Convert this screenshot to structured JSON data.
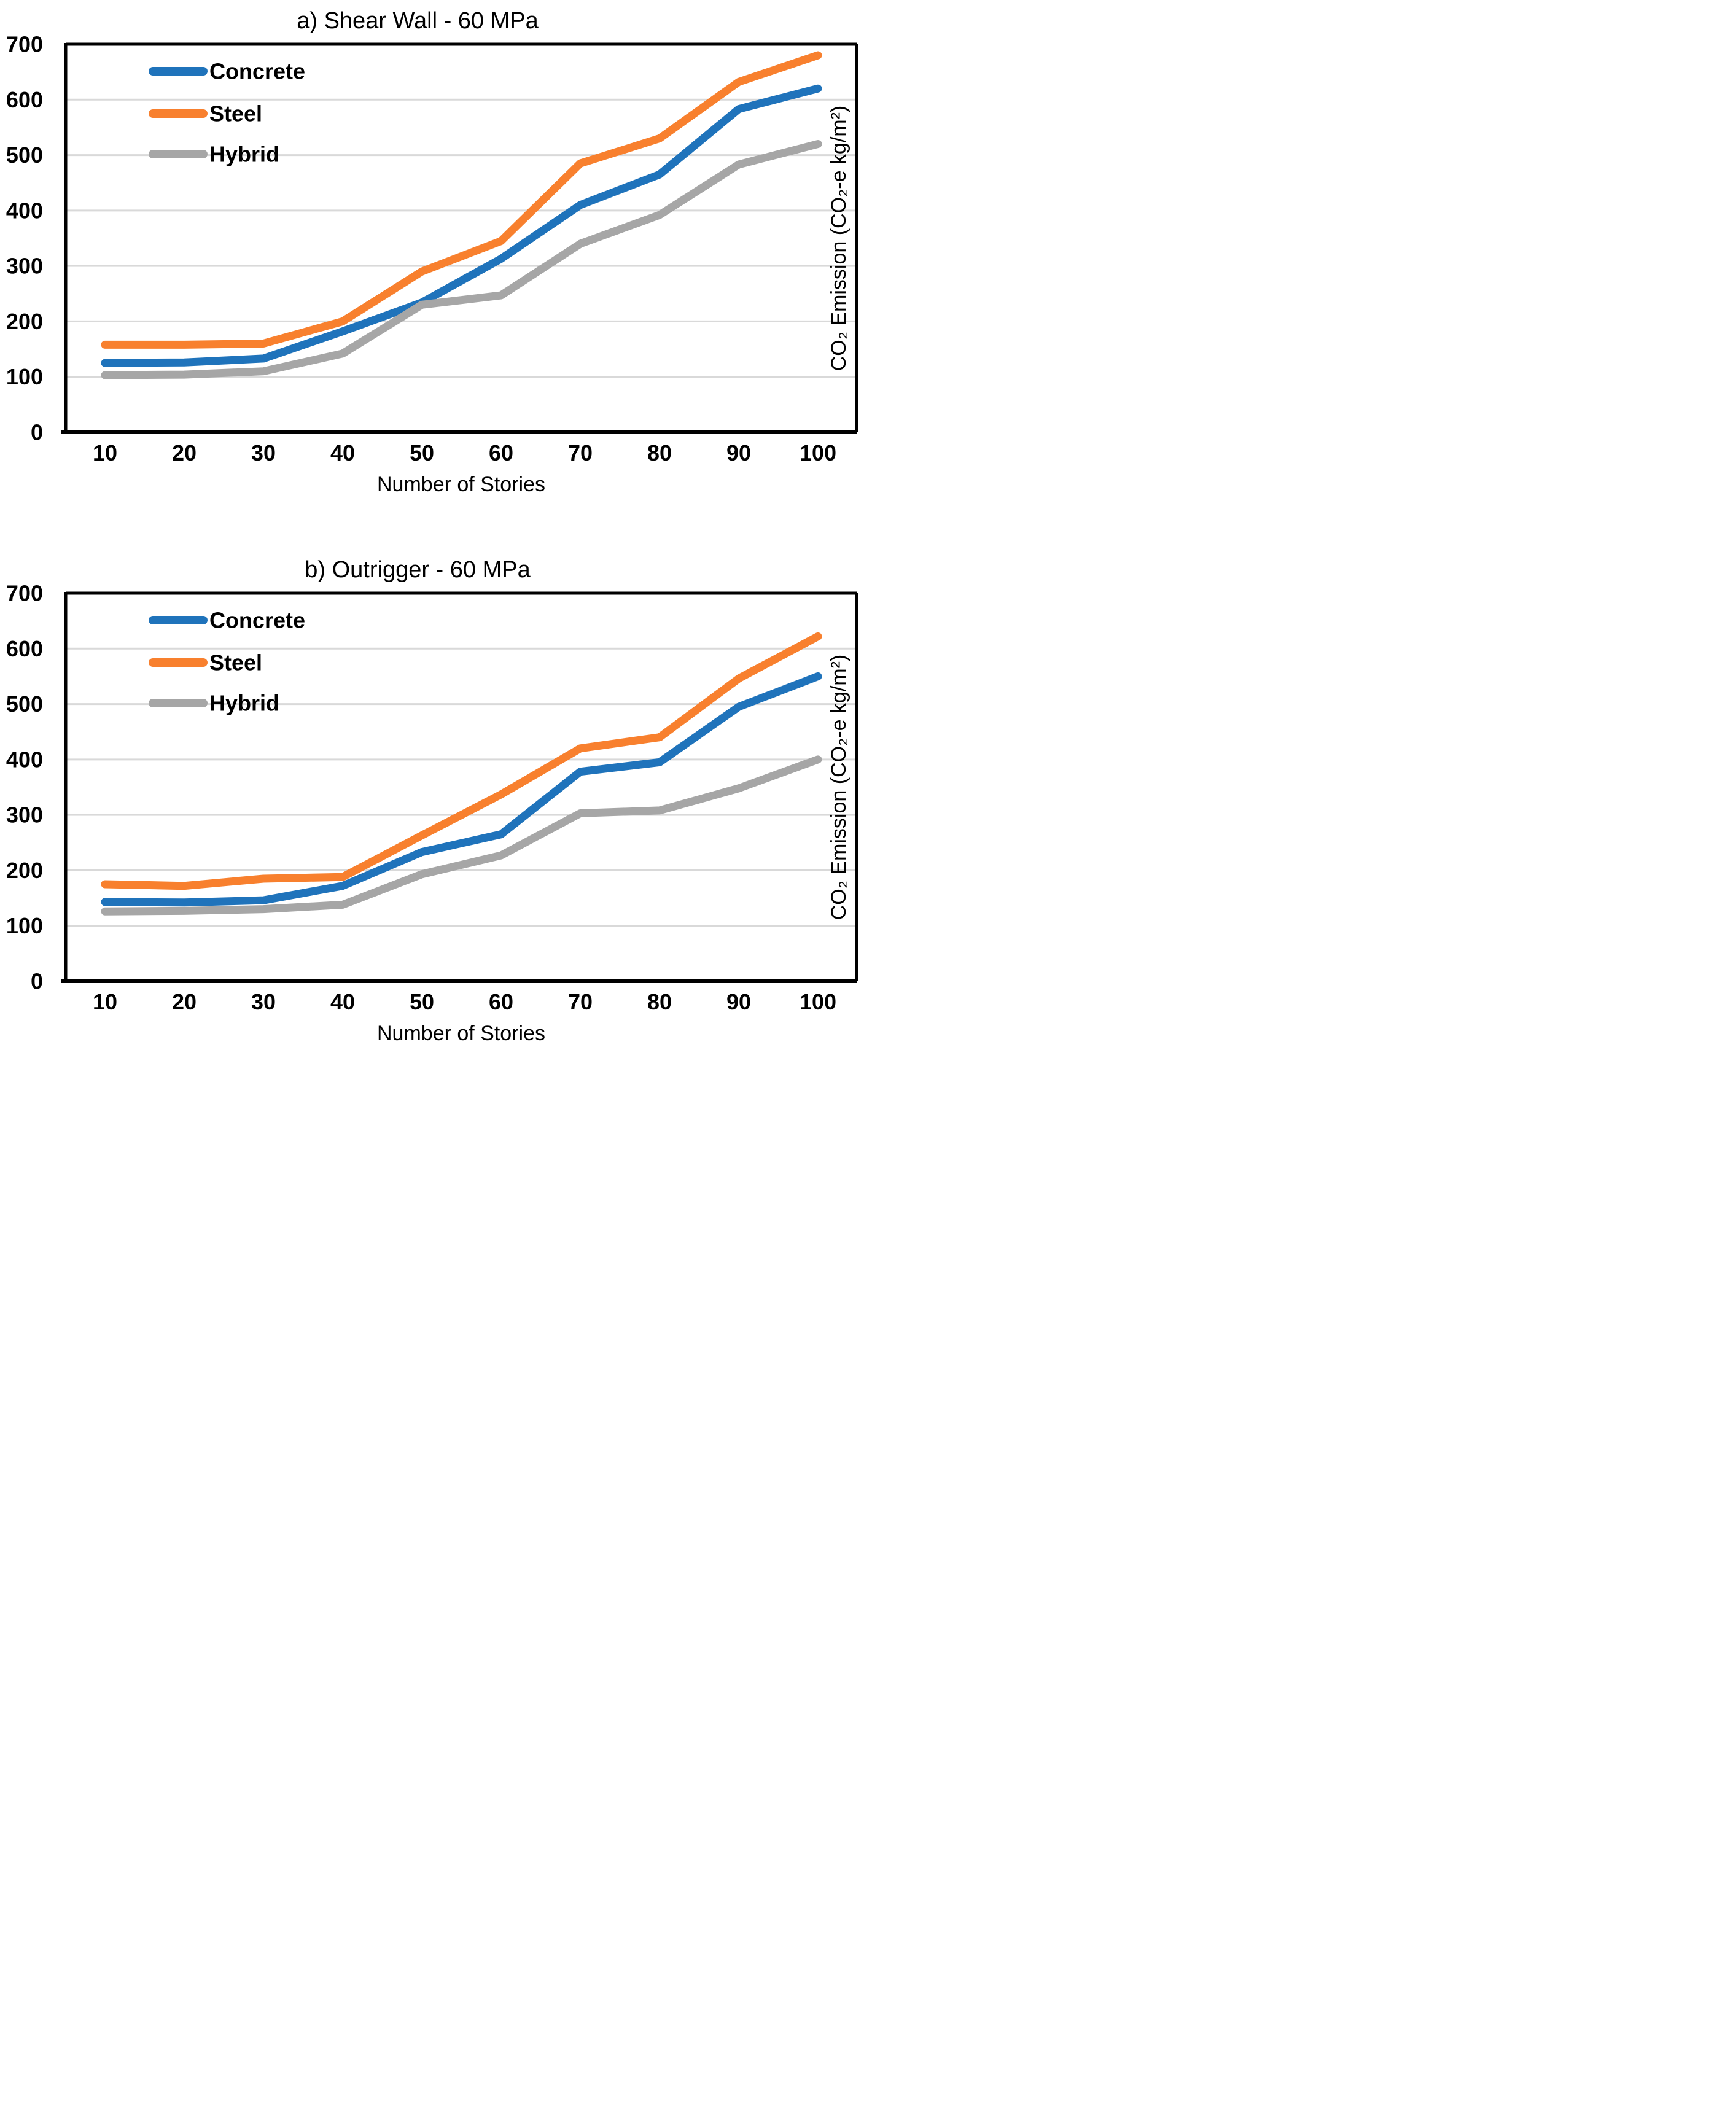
{
  "colors": {
    "concrete": "#1F73BB",
    "steel": "#F8802E",
    "hybrid": "#A6A6A6",
    "gridline": "#D9D9D9",
    "axis": "#000000",
    "background": "#FFFFFF"
  },
  "chart_data": [
    {
      "type": "line",
      "title": "a) Shear Wall - 60 MPa",
      "xlabel": "Number of Stories",
      "ylabel": "CO₂ Emission (CO₂-e kg/m²)",
      "categories": [
        10,
        20,
        30,
        40,
        50,
        60,
        70,
        80,
        90,
        100
      ],
      "x_tick_labels": [
        "10",
        "20",
        "30",
        "40",
        "50",
        "60",
        "70",
        "80",
        "90",
        "100"
      ],
      "y_tick_labels": [
        "0",
        "100",
        "200",
        "300",
        "400",
        "500",
        "600",
        "700"
      ],
      "ylim": [
        0,
        700
      ],
      "grid": true,
      "legend_position": "top-left-inside",
      "legend_entries": [
        "Concrete",
        "Steel",
        "Hybrid"
      ],
      "series": [
        {
          "name": "Concrete",
          "color": "#1F73BB",
          "values": [
            125,
            126,
            133,
            182,
            234,
            313,
            410,
            465,
            583,
            620
          ]
        },
        {
          "name": "Steel",
          "color": "#F8802E",
          "values": [
            158,
            158,
            160,
            200,
            290,
            345,
            485,
            530,
            632,
            680
          ]
        },
        {
          "name": "Hybrid",
          "color": "#A6A6A6",
          "values": [
            103,
            104,
            110,
            142,
            230,
            247,
            340,
            392,
            483,
            520
          ]
        }
      ]
    },
    {
      "type": "line",
      "title": "b) Outrigger - 60 MPa",
      "xlabel": "Number of Stories",
      "ylabel": "CO₂ Emission (CO₂-e kg/m²)",
      "categories": [
        10,
        20,
        30,
        40,
        50,
        60,
        70,
        80,
        90,
        100
      ],
      "x_tick_labels": [
        "10",
        "20",
        "30",
        "40",
        "50",
        "60",
        "70",
        "80",
        "90",
        "100"
      ],
      "y_tick_labels": [
        "0",
        "100",
        "200",
        "300",
        "400",
        "500",
        "600",
        "700"
      ],
      "ylim": [
        0,
        700
      ],
      "grid": true,
      "legend_position": "top-left-inside",
      "legend_entries": [
        "Concrete",
        "Steel",
        "Hybrid"
      ],
      "series": [
        {
          "name": "Concrete",
          "color": "#1F73BB",
          "values": [
            143,
            142,
            146,
            172,
            233,
            265,
            378,
            395,
            495,
            550
          ]
        },
        {
          "name": "Steel",
          "color": "#F8802E",
          "values": [
            175,
            172,
            185,
            188,
            263,
            337,
            420,
            440,
            546,
            622
          ]
        },
        {
          "name": "Hybrid",
          "color": "#A6A6A6",
          "values": [
            126,
            127,
            130,
            138,
            193,
            227,
            303,
            308,
            348,
            400
          ]
        }
      ]
    }
  ]
}
